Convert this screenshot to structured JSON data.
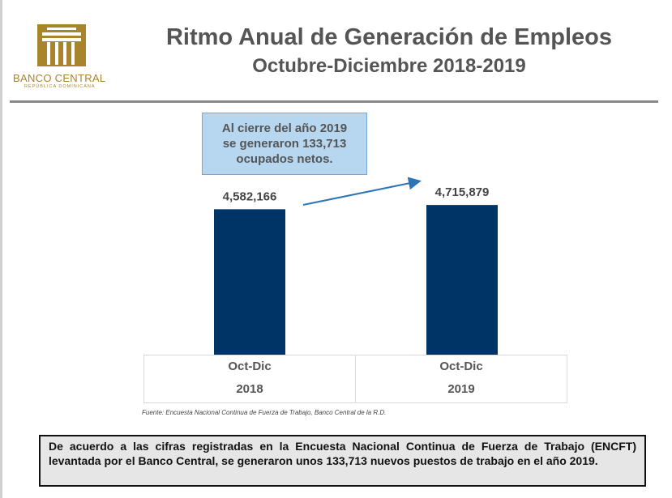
{
  "logo": {
    "name": "BANCO CENTRAL",
    "sub": "REPÚBLICA DOMINICANA",
    "color": "#a8842c"
  },
  "title": "Ritmo Anual de Generación de Empleos",
  "subtitle": "Octubre-Diciembre 2018-2019",
  "callout": {
    "line1": "Al cierre del año 2019",
    "line2": "se generaron 133,713",
    "line3": "ocupados netos."
  },
  "chart_data": {
    "type": "bar",
    "categories": [
      [
        "Oct-Dic",
        "2018"
      ],
      [
        "Oct-Dic",
        "2019"
      ]
    ],
    "values": [
      4582166,
      4715879
    ],
    "data_labels": [
      "4,582,166",
      "4,715,879"
    ],
    "bar_color": "#003366",
    "ylim": [
      0,
      5000000
    ],
    "grid": false,
    "annotation": "arrow from 2018 label to 2019 label"
  },
  "source": "Fuente: Encuesta Nacional Continua de Fuerza de Trabajo, Banco Central de la R.D.",
  "note": "De acuerdo a las cifras registradas en la Encuesta Nacional Continua de Fuerza de Trabajo (ENCFT) levantada por el Banco Central, se generaron unos 133,713 nuevos puestos de trabajo en el año 2019."
}
